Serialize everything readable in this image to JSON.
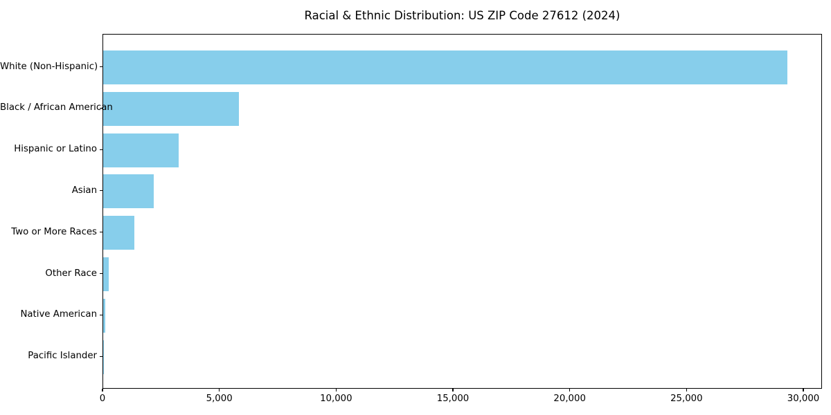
{
  "chart_data": {
    "type": "bar",
    "orientation": "horizontal",
    "title": "Racial & Ethnic Distribution: US ZIP Code 27612 (2024)",
    "categories": [
      "White (Non-Hispanic)",
      "Black / African American",
      "Hispanic or Latino",
      "Asian",
      "Two or More Races",
      "Other Race",
      "Native American",
      "Pacific Islander"
    ],
    "values": [
      29300,
      5800,
      3230,
      2160,
      1340,
      240,
      90,
      15
    ],
    "xlabel": "",
    "ylabel": "",
    "xlim": [
      0,
      30800
    ],
    "xticks": [
      0,
      5000,
      10000,
      15000,
      20000,
      25000,
      30000
    ],
    "xtick_labels": [
      "0",
      "5,000",
      "10,000",
      "15,000",
      "20,000",
      "25,000",
      "30,000"
    ],
    "bar_color": "#87CEEB",
    "axis_color": "#000000",
    "background_color": "#ffffff",
    "grid": false,
    "legend": "none",
    "sorted": "descending"
  }
}
